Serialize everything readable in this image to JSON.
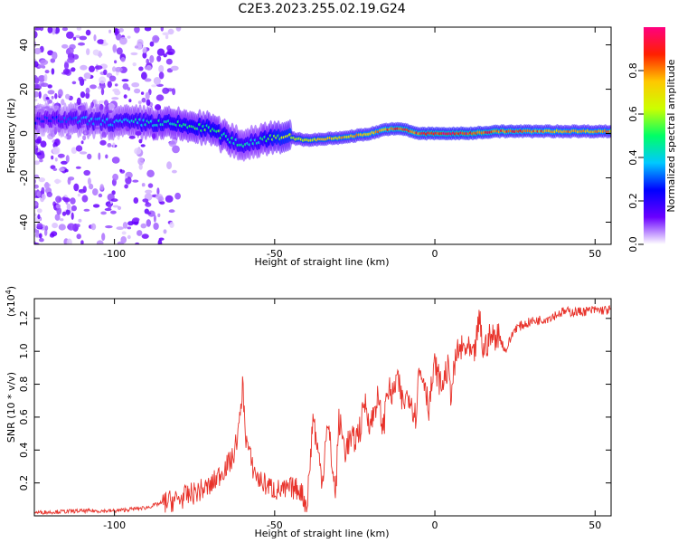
{
  "title": "C2E3.2023.255.02.19.G24",
  "chart_data": [
    {
      "type": "heatmap",
      "xlabel": "Height of straight line (km)",
      "ylabel": "Frequency (Hz)",
      "xlim": [
        -125,
        55
      ],
      "ylim": [
        -50,
        48
      ],
      "x_ticks": [
        -100,
        -50,
        0,
        50
      ],
      "y_ticks": [
        40,
        20,
        0,
        -20,
        -40
      ],
      "colorbar": {
        "label": "Normalized spectral amplitude",
        "range": [
          0.0,
          1.0
        ],
        "ticks": [
          "0.0",
          "0.2",
          "0.4",
          "0.6",
          "0.8"
        ],
        "colors": [
          "#ffffff",
          "#6a00ff",
          "#0000ff",
          "#00c8ff",
          "#00ff66",
          "#ccff00",
          "#ffc800",
          "#ff2000",
          "#ff0080"
        ]
      },
      "ridge": {
        "x": [
          -125,
          -110,
          -100,
          -90,
          -80,
          -70,
          -65,
          -60,
          -55,
          -50,
          -40,
          -30,
          -20,
          -15,
          -10,
          -5,
          0,
          10,
          20,
          30,
          40,
          55
        ],
        "freq": [
          6,
          6,
          5,
          5,
          4,
          2,
          -2,
          -5,
          -3,
          -1,
          -3,
          -2,
          0,
          2,
          2,
          0,
          0,
          0,
          1,
          1,
          1,
          1
        ],
        "amplitude": [
          0.25,
          0.35,
          0.4,
          0.45,
          0.5,
          0.55,
          0.5,
          0.45,
          0.45,
          0.6,
          0.7,
          0.75,
          0.8,
          0.85,
          0.9,
          0.9,
          0.95,
          0.95,
          0.9,
          0.85,
          0.8,
          0.8
        ]
      }
    },
    {
      "type": "line",
      "xlabel": "Height of straight line (km)",
      "ylabel": "SNR (10 * v/v)",
      "y_multiplier": "(x10",
      "y_multiplier_exp": "4",
      "y_multiplier_close": ")",
      "xlim": [
        -125,
        55
      ],
      "ylim": [
        0,
        1.32
      ],
      "x_ticks": [
        -100,
        -50,
        0,
        50
      ],
      "y_ticks": [
        0.2,
        0.4,
        0.6,
        0.8,
        1.0,
        1.2
      ],
      "color": "#e8322a",
      "series": [
        {
          "x": [
            -125,
            -110,
            -100,
            -95,
            -90,
            -85,
            -80,
            -75,
            -70,
            -66,
            -63,
            -61,
            -60,
            -59,
            -57,
            -55,
            -52,
            -50,
            -47,
            -45,
            -42,
            -40,
            -39,
            -38,
            -37,
            -36,
            -35,
            -34,
            -33,
            -32,
            -31,
            -30,
            -29,
            -28,
            -27,
            -25,
            -23,
            -22,
            -20,
            -18,
            -16,
            -15,
            -13,
            -12,
            -10,
            -8,
            -6,
            -5,
            -3,
            -2,
            0,
            2,
            4,
            5,
            7,
            10,
            12,
            14,
            15,
            17,
            20,
            22,
            25,
            30,
            35,
            40,
            45,
            50,
            55
          ],
          "values": [
            0.02,
            0.03,
            0.03,
            0.04,
            0.05,
            0.08,
            0.1,
            0.14,
            0.18,
            0.28,
            0.35,
            0.55,
            0.8,
            0.48,
            0.3,
            0.22,
            0.18,
            0.16,
            0.15,
            0.17,
            0.16,
            0.06,
            0.3,
            0.62,
            0.45,
            0.32,
            0.22,
            0.52,
            0.5,
            0.3,
            0.12,
            0.58,
            0.5,
            0.4,
            0.45,
            0.46,
            0.55,
            0.7,
            0.55,
            0.72,
            0.52,
            0.78,
            0.72,
            0.85,
            0.68,
            0.75,
            0.6,
            0.88,
            0.82,
            0.65,
            0.92,
            0.78,
            0.9,
            0.75,
            1.0,
            1.02,
            0.95,
            1.2,
            1.0,
            1.08,
            1.1,
            1.0,
            1.14,
            1.18,
            1.2,
            1.24,
            1.24,
            1.25,
            1.25
          ]
        }
      ]
    }
  ]
}
